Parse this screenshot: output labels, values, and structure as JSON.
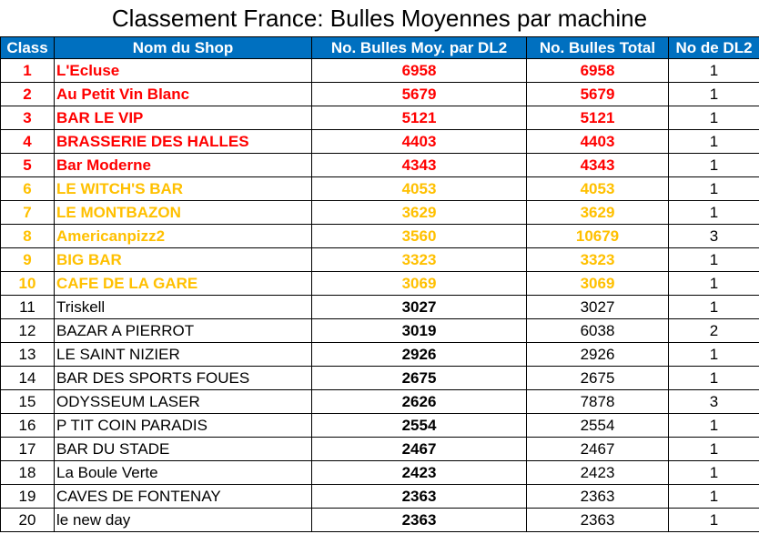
{
  "title": "Classement France: Bulles Moyennes par machine",
  "colors": {
    "header_bg": "#0070c0",
    "top5": "#ff0000",
    "top10": "#ffc000"
  },
  "headers": {
    "rank": "Class",
    "shop": "Nom du Shop",
    "avg": "No. Bulles Moy. par DL2",
    "total": "No. Bulles Total",
    "dl2": "No de DL2"
  },
  "rows": [
    {
      "rank": "1",
      "shop": "L'Ecluse",
      "avg": "6958",
      "total": "6958",
      "dl2": "1",
      "tier": "red"
    },
    {
      "rank": "2",
      "shop": "Au Petit Vin Blanc",
      "avg": "5679",
      "total": "5679",
      "dl2": "1",
      "tier": "red"
    },
    {
      "rank": "3",
      "shop": "BAR LE VIP",
      "avg": "5121",
      "total": "5121",
      "dl2": "1",
      "tier": "red"
    },
    {
      "rank": "4",
      "shop": "BRASSERIE DES HALLES",
      "avg": "4403",
      "total": "4403",
      "dl2": "1",
      "tier": "red"
    },
    {
      "rank": "5",
      "shop": "Bar Moderne",
      "avg": "4343",
      "total": "4343",
      "dl2": "1",
      "tier": "red"
    },
    {
      "rank": "6",
      "shop": "LE WITCH'S BAR",
      "avg": "4053",
      "total": "4053",
      "dl2": "1",
      "tier": "gold"
    },
    {
      "rank": "7",
      "shop": "LE MONTBAZON",
      "avg": "3629",
      "total": "3629",
      "dl2": "1",
      "tier": "gold"
    },
    {
      "rank": "8",
      "shop": "Americanpizz2",
      "avg": "3560",
      "total": "10679",
      "dl2": "3",
      "tier": "gold"
    },
    {
      "rank": "9",
      "shop": "BIG BAR",
      "avg": "3323",
      "total": "3323",
      "dl2": "1",
      "tier": "gold"
    },
    {
      "rank": "10",
      "shop": "CAFE DE LA GARE",
      "avg": "3069",
      "total": "3069",
      "dl2": "1",
      "tier": "gold"
    },
    {
      "rank": "11",
      "shop": "Triskell",
      "avg": "3027",
      "total": "3027",
      "dl2": "1",
      "tier": "plain"
    },
    {
      "rank": "12",
      "shop": "BAZAR A PIERROT",
      "avg": "3019",
      "total": "6038",
      "dl2": "2",
      "tier": "plain"
    },
    {
      "rank": "13",
      "shop": "LE SAINT NIZIER",
      "avg": "2926",
      "total": "2926",
      "dl2": "1",
      "tier": "plain"
    },
    {
      "rank": "14",
      "shop": "BAR DES SPORTS FOUES",
      "avg": "2675",
      "total": "2675",
      "dl2": "1",
      "tier": "plain"
    },
    {
      "rank": "15",
      "shop": "ODYSSEUM LASER",
      "avg": "2626",
      "total": "7878",
      "dl2": "3",
      "tier": "plain"
    },
    {
      "rank": "16",
      "shop": "P TIT COIN PARADIS",
      "avg": "2554",
      "total": "2554",
      "dl2": "1",
      "tier": "plain"
    },
    {
      "rank": "17",
      "shop": "BAR DU STADE",
      "avg": "2467",
      "total": "2467",
      "dl2": "1",
      "tier": "plain"
    },
    {
      "rank": "18",
      "shop": "La Boule Verte",
      "avg": "2423",
      "total": "2423",
      "dl2": "1",
      "tier": "plain"
    },
    {
      "rank": "19",
      "shop": "CAVES DE FONTENAY",
      "avg": "2363",
      "total": "2363",
      "dl2": "1",
      "tier": "plain"
    },
    {
      "rank": "20",
      "shop": "le new day",
      "avg": "2363",
      "total": "2363",
      "dl2": "1",
      "tier": "plain"
    }
  ]
}
